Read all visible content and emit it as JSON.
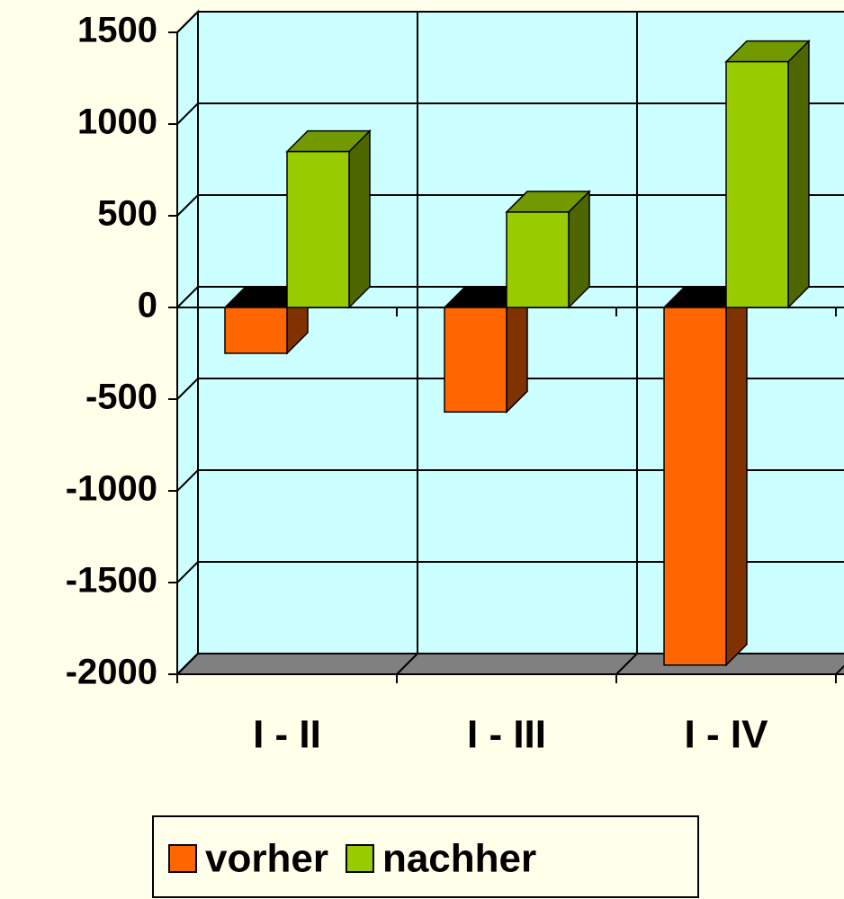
{
  "chart_data": {
    "type": "bar3d",
    "categories": [
      "I - II",
      "I - III",
      "I - IV"
    ],
    "series": [
      {
        "name": "vorher",
        "color": "#ff6600",
        "values": [
          -250,
          -570,
          -1950
        ]
      },
      {
        "name": "nachher",
        "color": "#99cc00",
        "values": [
          850,
          520,
          1340
        ]
      }
    ],
    "ylim": [
      -2000,
      1500
    ],
    "yticks": [
      -2000,
      -1500,
      -1000,
      -500,
      0,
      500,
      1000,
      1500
    ],
    "grid": true,
    "legend": "bottom",
    "wall_color": "#ccffff",
    "floor_color": "#808080"
  }
}
